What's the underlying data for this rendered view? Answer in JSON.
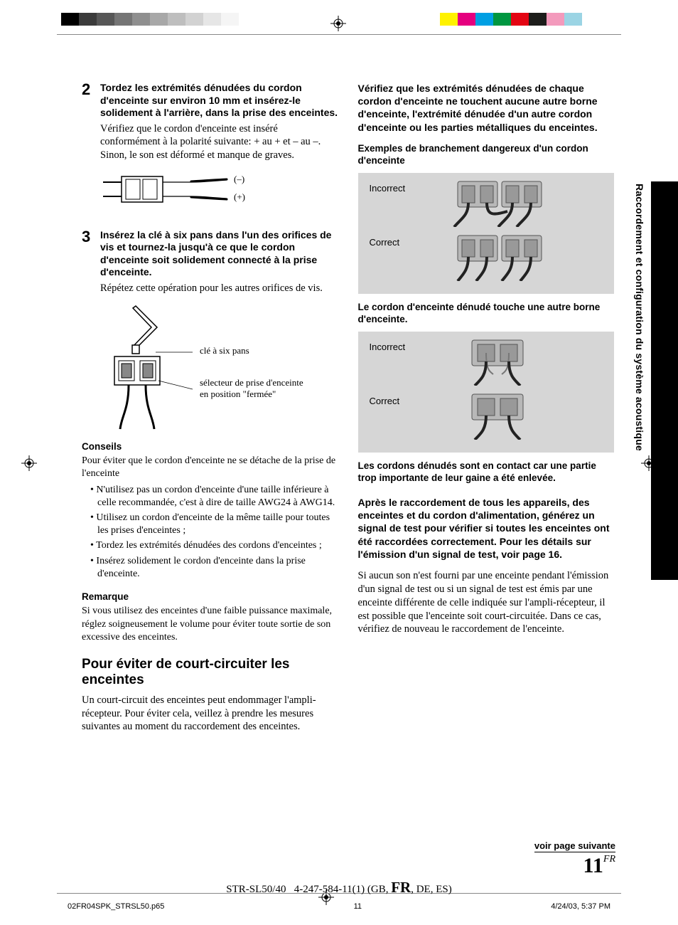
{
  "colorbar_left": [
    "#000000",
    "#3b3b3b",
    "#575757",
    "#757575",
    "#8f8f8f",
    "#a8a8a8",
    "#bebebe",
    "#d2d2d2",
    "#e6e6e6",
    "#f5f5f5",
    "#ffffff"
  ],
  "colorbar_right": [
    "#fff200",
    "#e5007f",
    "#009fe3",
    "#009640",
    "#e30613",
    "#1d1d1b",
    "#f39abc",
    "#9bd4e4",
    "#ffffff"
  ],
  "side_label": "Raccordement et configuration du système acoustique",
  "step2": {
    "num": "2",
    "head": "Tordez les extrémités dénudées du cordon d'enceinte sur environ 10 mm et insérez-le solidement à l'arrière, dans la prise des enceintes.",
    "body": "Vérifiez que le cordon d'enceinte est inséré conformément à la polarité suivante: + au + et – au –. Sinon, le son est déformé et manque de graves.",
    "minus": "(–)",
    "plus": "(+)"
  },
  "step3": {
    "num": "3",
    "head": "Insérez la clé à six pans dans l'un des orifices de vis et tournez-la jusqu'à ce que le cordon d'enceinte soit solidement connecté à la prise d'enceinte.",
    "body": "Répétez cette opération pour les autres orifices de vis.",
    "label1": "clé à six pans",
    "label2": "sélecteur de prise d'enceinte en position \"fermée\""
  },
  "conseils": {
    "title": "Conseils",
    "intro": "Pour éviter que le cordon d'enceinte ne se détache de la prise de l'enceinte",
    "items": [
      "N'utilisez pas un cordon d'enceinte d'une taille inférieure à celle recommandée, c'est à dire de taille AWG24 à AWG14.",
      "Utilisez un cordon d'enceinte de la même taille pour toutes les prises d'enceintes ;",
      "Tordez les extrémités dénudées des cordons d'enceintes ;",
      "Insérez solidement le cordon d'enceinte dans la prise d'enceinte."
    ]
  },
  "remarque": {
    "title": "Remarque",
    "body": "Si vous utilisez des enceintes d'une faible puissance maximale, réglez soigneusement le volume pour éviter toute sortie de son excessive des enceintes."
  },
  "section": {
    "title": "Pour éviter de court-circuiter les enceintes",
    "body": "Un court-circuit des enceintes peut endommager l'ampli-récepteur. Pour éviter cela, veillez à prendre les mesures suivantes au moment du raccordement des enceintes."
  },
  "right": {
    "para1": "Vérifiez que les extrémités dénudées de chaque cordon d'enceinte ne touchent aucune autre borne d'enceinte, l'extrémité dénudée d'un autre cordon d'enceinte ou les parties métalliques du enceintes.",
    "ex_title": "Exemples de branchement dangereux d'un cordon d'enceinte",
    "incorrect": "Incorrect",
    "correct": "Correct",
    "cap1": "Le cordon d'enceinte dénudé touche une autre borne d'enceinte.",
    "cap2": "Les cordons dénudés sont en contact car une partie trop importante de leur gaine a été enlevée.",
    "bold": "Après le raccordement de tous les appareils, des enceintes et du cordon d'alimentation, générez un signal de test pour vérifier si toutes les enceintes ont été raccordées correctement. Pour les détails sur l'émission d'un signal de test, voir page 16.",
    "tail": "Si aucun son n'est fourni par une enceinte pendant l'émission d'un signal de test ou si un signal de test est émis par une enceinte différente de celle indiquée sur l'ampli-récepteur, il est possible que l'enceinte soit court-circuitée. Dans ce cas, vérifiez de nouveau le raccordement de l'enceinte."
  },
  "nextpage": "voir page suivante",
  "page_number": "11",
  "page_lang": "FR",
  "footer": {
    "file": "02FR04SPK_STRSL50.p65",
    "p": "11",
    "date": "4/24/03, 5:37 PM",
    "model_a": "STR-SL50/40",
    "model_b": "4-247-584-11(1) (GB, ",
    "model_fr": "FR",
    "model_c": ", DE, ES)"
  }
}
